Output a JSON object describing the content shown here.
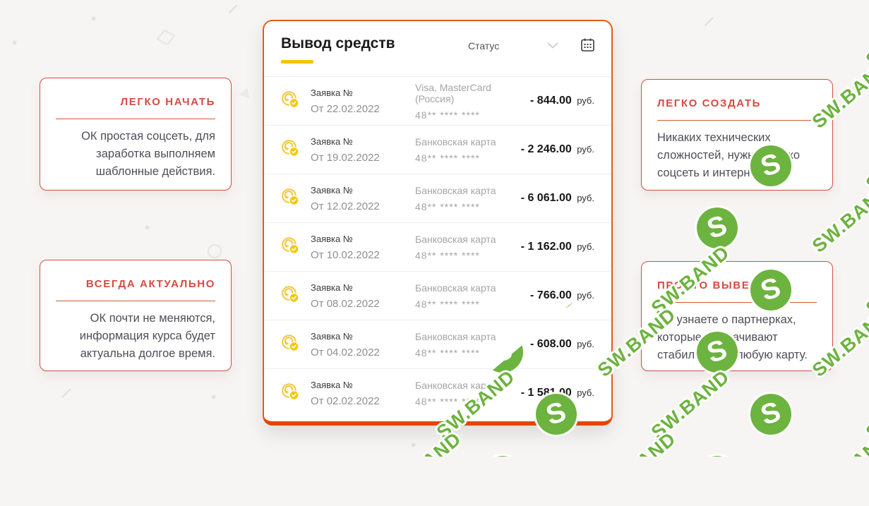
{
  "panel": {
    "title": "Вывод средств",
    "status_label": "Статус",
    "rows": [
      {
        "request_label": "Заявка №",
        "date": "От 22.02.2022",
        "method": "Visa, MasterCard (Россия)",
        "card_mask": "48** **** ****",
        "amount": "- 844.00",
        "currency": "руб."
      },
      {
        "request_label": "Заявка №",
        "date": "От 19.02.2022",
        "method": "Банковская карта",
        "card_mask": "48** **** ****",
        "amount": "- 2 246.00",
        "currency": "руб."
      },
      {
        "request_label": "Заявка №",
        "date": "От 12.02.2022",
        "method": "Банковская карта",
        "card_mask": "48** **** ****",
        "amount": "- 6 061.00",
        "currency": "руб."
      },
      {
        "request_label": "Заявка №",
        "date": "От 10.02.2022",
        "method": "Банковская карта",
        "card_mask": "48** **** ****",
        "amount": "- 1 162.00",
        "currency": "руб."
      },
      {
        "request_label": "Заявка №",
        "date": "От 08.02.2022",
        "method": "Банковская карта",
        "card_mask": "48** **** ****",
        "amount": "- 766.00",
        "currency": "руб."
      },
      {
        "request_label": "Заявка №",
        "date": "От 04.02.2022",
        "method": "Банковская карта",
        "card_mask": "48** **** ****",
        "amount": "- 608.00",
        "currency": "руб."
      },
      {
        "request_label": "Заявка №",
        "date": "От 02.02.2022",
        "method": "Банковская карта",
        "card_mask": "48** **** ****",
        "amount": "- 1 581.00",
        "currency": "руб."
      }
    ]
  },
  "info_cards": {
    "left": [
      {
        "title": "ЛЕГКО НАЧАТЬ",
        "text": "ОК простая соцсеть, для заработка выполняем шаблонные действия."
      },
      {
        "title": "ВСЕГДА АКТУАЛЬНО",
        "text": "ОК почти не меняются, информация курса будет актуальна долгое время."
      }
    ],
    "right": [
      {
        "title": "ЛЕГКО СОЗДАТЬ",
        "text": "Никаких технических сложностей, нужна только соцсеть и интернет."
      },
      {
        "title": "ПРОСТО ВЫВЕСТИ",
        "text": "Вы узнаете о партнерках, которые выплачивают стабильно, на любую карту."
      }
    ]
  },
  "watermark": {
    "text": "SW.BAND",
    "badge_letter": "S",
    "color": "#6db33f"
  },
  "colors": {
    "panel_border": "#e65c12",
    "panel_bottom_border": "#e8430a",
    "title_underline": "#f5c400",
    "card_accent_red": "#d54b42",
    "watermark_green": "#6db33f",
    "background": "#f7f5f3"
  }
}
